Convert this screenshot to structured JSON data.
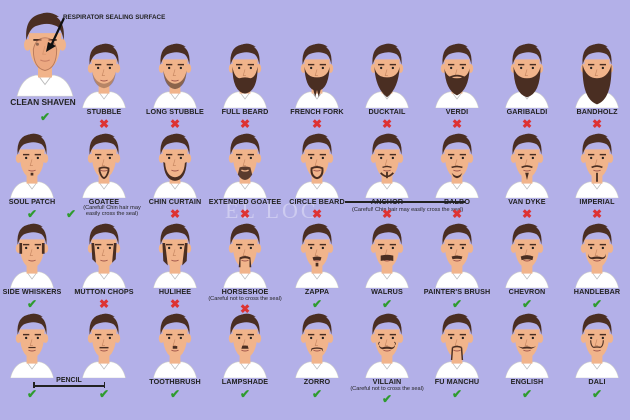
{
  "header": {
    "respirator_label": "RESPIRATOR SEALING SURFACE",
    "clean_shaven_label": "CLEAN SHAVEN",
    "clean_shaven_allowed": true
  },
  "watermark_text": "EL LOC",
  "colors": {
    "background": "#b3b0e8",
    "skin": "#f1b48b",
    "hair": "#4a2e22",
    "shirt": "#ffffff",
    "check": "#2e9b2e",
    "cross": "#d33333",
    "seal": "#e8a07a"
  },
  "rows": [
    [
      {
        "label": "STUBBLE",
        "allowed": false,
        "style": "stubble"
      },
      {
        "label": "LONG STUBBLE",
        "allowed": false,
        "style": "longstubble"
      },
      {
        "label": "FULL BEARD",
        "allowed": false,
        "style": "full"
      },
      {
        "label": "FRENCH FORK",
        "allowed": false,
        "style": "fork"
      },
      {
        "label": "DUCKTAIL",
        "allowed": false,
        "style": "ducktail"
      },
      {
        "label": "VERDI",
        "allowed": false,
        "style": "verdi"
      },
      {
        "label": "GARIBALDI",
        "allowed": false,
        "style": "garibaldi"
      },
      {
        "label": "BANDHOLZ",
        "allowed": false,
        "style": "bandholz"
      }
    ],
    [
      {
        "label": "SOUL PATCH",
        "allowed": true,
        "style": "soulpatch"
      },
      {
        "label": "GOATEE",
        "allowed": true,
        "style": "goatee",
        "note": "(Careful! Chin hair may easily cross the seal)"
      },
      {
        "label": "CHIN CURTAIN",
        "allowed": false,
        "style": "chincurtain"
      },
      {
        "label": "EXTENDED GOATEE",
        "allowed": false,
        "style": "extgoatee"
      },
      {
        "label": "CIRCLE BEARD",
        "allowed": false,
        "style": "circle"
      },
      {
        "label": "ANCHOR",
        "allowed": false,
        "style": "anchor"
      },
      {
        "label": "BALBO",
        "allowed": false,
        "style": "balbo"
      },
      {
        "label": "VAN DYKE",
        "allowed": false,
        "style": "vandyke"
      },
      {
        "label": "IMPERIAL",
        "allowed": false,
        "style": "imperial"
      }
    ],
    [
      {
        "label": "SIDE WHISKERS",
        "allowed": true,
        "style": "whiskers"
      },
      {
        "label": "MUTTON CHOPS",
        "allowed": false,
        "style": "mutton"
      },
      {
        "label": "HULIHEE",
        "allowed": false,
        "style": "hulihee"
      },
      {
        "label": "HORSESHOE",
        "allowed": false,
        "style": "horseshoe",
        "note": "(Careful not to cross the seal)"
      },
      {
        "label": "ZAPPA",
        "allowed": true,
        "style": "zappa"
      },
      {
        "label": "WALRUS",
        "allowed": true,
        "style": "walrus"
      },
      {
        "label": "PAINTER'S BRUSH",
        "allowed": true,
        "style": "painter"
      },
      {
        "label": "CHEVRON",
        "allowed": true,
        "style": "chevron"
      },
      {
        "label": "HANDLEBAR",
        "allowed": true,
        "style": "handlebar"
      }
    ],
    [
      {
        "label": "",
        "allowed": true,
        "style": "pencil1"
      },
      {
        "label": "",
        "allowed": true,
        "style": "pencil2"
      },
      {
        "label": "TOOTHBRUSH",
        "allowed": true,
        "style": "toothbrush"
      },
      {
        "label": "LAMPSHADE",
        "allowed": true,
        "style": "lampshade"
      },
      {
        "label": "ZORRO",
        "allowed": true,
        "style": "zorro"
      },
      {
        "label": "VILLAIN",
        "allowed": true,
        "style": "villain",
        "note": "(Careful not to cross the seal)"
      },
      {
        "label": "FU MANCHU",
        "allowed": true,
        "style": "fumanchu"
      },
      {
        "label": "ENGLISH",
        "allowed": true,
        "style": "english"
      },
      {
        "label": "DALI",
        "allowed": true,
        "style": "dali"
      }
    ]
  ],
  "anchor_note": "(Careful! Chin hair may easily cross the seal)",
  "pencil_label": "PENCIL",
  "marks": {
    "yes": "✔",
    "no": "✖"
  }
}
